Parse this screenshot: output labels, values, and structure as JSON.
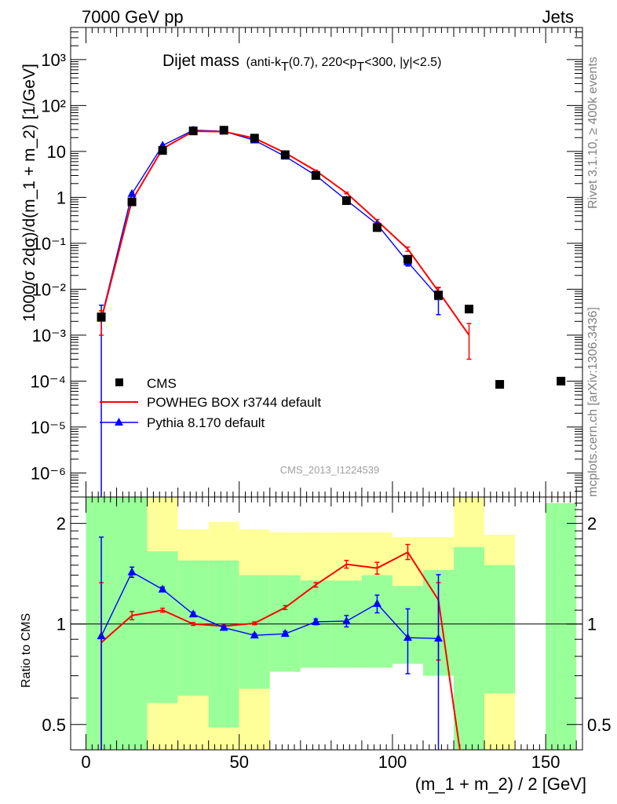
{
  "header": {
    "left": "7000 GeV pp",
    "right": "Jets",
    "side_rivet": "Rivet 3.1.10, ≥ 400k events",
    "side_mcplots": "mcplots.cern.ch [arXiv:1306.3436]"
  },
  "plot_title": {
    "main": "Dijet mass",
    "sub_a": "(anti-k",
    "sub_a_sub": "T",
    "sub_b": "(0.7), 220<p",
    "sub_b_sub": "T",
    "sub_c": "<300, |y|<2.5)"
  },
  "watermark": "CMS_2013_I1224539",
  "colors": {
    "data": "#000000",
    "powheg": "#ff0000",
    "pythia": "#0000ff",
    "band_inner": "#99ff99",
    "band_outer": "#ffff99"
  },
  "chart_data": [
    {
      "type": "scatter",
      "panel": "main",
      "ylabel": "1000/σ 2dσ)/d(m_1 + m_2) [1/GeV]",
      "y_scale": "log",
      "ylim": [
        3e-07,
        5000
      ],
      "xlim": [
        -5,
        162
      ],
      "y_tick_labels": [
        "10⁻⁶",
        "10⁻⁵",
        "10⁻⁴",
        "10⁻³",
        "10⁻²",
        "10⁻¹",
        "1",
        "10",
        "10²",
        "10³"
      ],
      "legend_position": "bottom-left",
      "series": [
        {
          "name": "CMS",
          "marker": "square",
          "x": [
            5,
            15,
            25,
            35,
            45,
            55,
            65,
            75,
            85,
            95,
            105,
            115,
            125,
            135,
            155
          ],
          "y": [
            0.0025,
            0.8,
            10.5,
            28,
            29,
            19.5,
            8.5,
            3.0,
            0.85,
            0.22,
            0.045,
            0.0075,
            0.0037,
            8.5e-05,
            0.0001
          ]
        },
        {
          "name": "POWHEG BOX r3744 default",
          "marker": "line",
          "x": [
            5,
            15,
            25,
            35,
            45,
            55,
            65,
            75,
            85,
            95,
            105,
            115,
            125
          ],
          "y": [
            0.0022,
            0.85,
            11.5,
            27.5,
            27,
            19.5,
            9.3,
            3.8,
            1.25,
            0.31,
            0.075,
            0.009,
            0.001
          ],
          "err_lo": [
            0.0012,
            0.02,
            0.2,
            0.3,
            0.3,
            0.2,
            0.1,
            0.1,
            0.05,
            0.02,
            0.008,
            0.002,
            0.0007
          ],
          "err_hi": [
            0.0012,
            0.02,
            0.2,
            0.3,
            0.3,
            0.2,
            0.1,
            0.1,
            0.05,
            0.02,
            0.008,
            0.002,
            0.0008
          ]
        },
        {
          "name": "Pythia 8.170 default",
          "marker": "triangle",
          "x": [
            5,
            15,
            25,
            35,
            45,
            55,
            65,
            75,
            85,
            95,
            105,
            115
          ],
          "y": [
            0.0023,
            1.2,
            13.5,
            29,
            27.5,
            17.5,
            7.8,
            3.0,
            0.87,
            0.26,
            0.039,
            0.0068
          ],
          "err_lo": [
            0.0023,
            0.05,
            0.3,
            0.4,
            0.4,
            0.3,
            0.15,
            0.07,
            0.04,
            0.02,
            0.007,
            0.004
          ],
          "err_hi": [
            0.0022,
            0.05,
            0.3,
            0.4,
            0.4,
            0.3,
            0.15,
            0.07,
            0.04,
            0.02,
            0.007,
            0.004
          ]
        }
      ]
    },
    {
      "type": "line",
      "panel": "ratio",
      "ylabel": "Ratio to CMS",
      "xlabel": "(m_1 + m_2) / 2 [GeV]",
      "y_scale": "log",
      "ylim": [
        0.42,
        2.4
      ],
      "xlim": [
        -5,
        162
      ],
      "x_tick_labels": [
        "0",
        "50",
        "100",
        "150"
      ],
      "y_tick_labels": [
        "0.5",
        "1",
        "2"
      ],
      "bands": {
        "x_edges": [
          0,
          10,
          20,
          30,
          40,
          50,
          60,
          70,
          80,
          90,
          100,
          110,
          120,
          130,
          140,
          150,
          160
        ],
        "inner_lo": [
          0.42,
          0.42,
          0.58,
          0.61,
          0.49,
          0.64,
          0.72,
          0.74,
          0.74,
          0.74,
          0.76,
          0.7,
          0.42,
          0.62,
          null,
          0.42
        ],
        "inner_hi": [
          2.4,
          2.4,
          1.65,
          1.55,
          1.55,
          1.4,
          1.4,
          1.35,
          1.35,
          1.4,
          1.3,
          1.45,
          1.7,
          1.5,
          null,
          2.3
        ],
        "outer_lo": [
          0.42,
          0.42,
          0.42,
          0.42,
          0.42,
          0.42,
          null,
          null,
          null,
          null,
          null,
          null,
          null,
          0.42,
          null,
          0.42
        ],
        "outer_hi": [
          2.4,
          2.4,
          2.4,
          1.92,
          2.02,
          1.92,
          1.88,
          1.88,
          1.88,
          1.88,
          1.82,
          1.82,
          2.4,
          1.85,
          null,
          2.3
        ]
      },
      "series": [
        {
          "name": "POWHEG BOX r3744 default",
          "x": [
            5,
            15,
            25,
            35,
            45,
            55,
            65,
            75,
            85,
            95,
            105,
            115,
            122
          ],
          "y": [
            0.88,
            1.06,
            1.1,
            1.0,
            0.985,
            1.005,
            1.12,
            1.31,
            1.51,
            1.47,
            1.64,
            1.18,
            0.42
          ],
          "err_lo": [
            0.5,
            0.03,
            0.015,
            0.01,
            0.01,
            0.01,
            0.015,
            0.02,
            0.04,
            0.06,
            0.08,
            0.4,
            0
          ],
          "err_hi": [
            0.45,
            0.03,
            0.015,
            0.01,
            0.01,
            0.01,
            0.015,
            0.02,
            0.04,
            0.06,
            0.09,
            0.15,
            0
          ]
        },
        {
          "name": "Pythia 8.170 default",
          "x": [
            5,
            15,
            25,
            35,
            45,
            55,
            65,
            75,
            85,
            95,
            105,
            115
          ],
          "y": [
            0.92,
            1.43,
            1.27,
            1.07,
            0.975,
            0.925,
            0.935,
            1.015,
            1.02,
            1.15,
            0.91,
            0.905
          ],
          "err_lo": [
            0.5,
            0.05,
            0.02,
            0.015,
            0.01,
            0.01,
            0.015,
            0.02,
            0.04,
            0.07,
            0.2,
            0.5
          ],
          "err_hi": [
            0.9,
            0.05,
            0.02,
            0.015,
            0.01,
            0.01,
            0.015,
            0.02,
            0.04,
            0.07,
            0.2,
            0.5
          ]
        }
      ]
    }
  ]
}
